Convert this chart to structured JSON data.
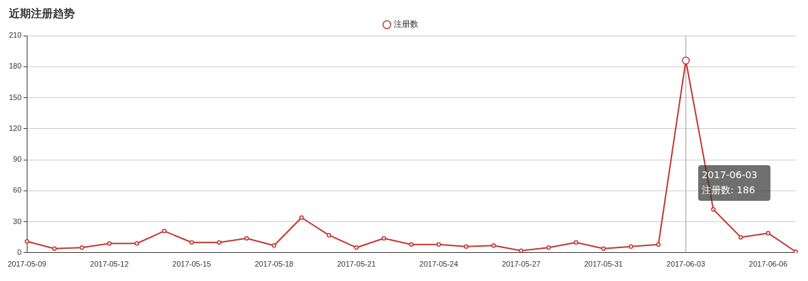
{
  "chart_data": {
    "type": "line",
    "title": "近期注册趋势",
    "categories": [
      "2017-05-09",
      null,
      null,
      "2017-05-12",
      null,
      null,
      "2017-05-15",
      null,
      null,
      "2017-05-18",
      null,
      null,
      "2017-05-21",
      null,
      null,
      "2017-05-24",
      null,
      null,
      "2017-05-27",
      null,
      null,
      "2017-05-31",
      null,
      null,
      "2017-06-03",
      null,
      null,
      "2017-06-06",
      null
    ],
    "series": [
      {
        "name": "注册数",
        "color": "#c23531",
        "values": [
          11,
          4,
          5,
          9,
          9,
          21,
          10,
          10,
          14,
          7,
          34,
          17,
          5,
          14,
          8,
          8,
          6,
          7,
          2,
          5,
          10,
          4,
          6,
          8,
          186,
          42,
          15,
          19,
          1
        ]
      }
    ],
    "ylim": [
      0,
      210
    ],
    "yticks": [
      0,
      30,
      60,
      90,
      120,
      150,
      180,
      210
    ],
    "grid": "y",
    "legend": "top",
    "marker": "circle",
    "line_style": "solid",
    "ref_lines": [
      {
        "axis": "x",
        "value": "2017-06-03",
        "color": "#999999"
      }
    ],
    "annotations": [
      "2017-06-03\n注册数: 186"
    ]
  }
}
